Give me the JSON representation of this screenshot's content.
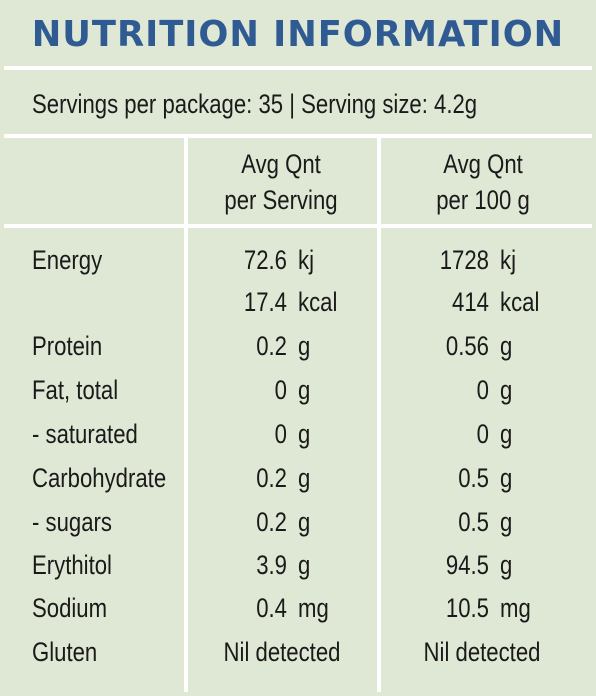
{
  "title": "NUTRITION INFORMATION",
  "serving_info": "Servings per package: 35 | Serving size: 4.2g",
  "headers": {
    "per_serving_line1": "Avg Qnt",
    "per_serving_line2": "per Serving",
    "per_100g_line1": "Avg Qnt",
    "per_100g_line2": "per 100 g"
  },
  "rows": [
    {
      "name": "Energy",
      "serv_val": "72.6",
      "serv_unit": "kj",
      "g100_val": "1728",
      "g100_unit": "kj"
    },
    {
      "name": "",
      "serv_val": "17.4",
      "serv_unit": "kcal",
      "g100_val": "414",
      "g100_unit": "kcal"
    },
    {
      "name": "Protein",
      "serv_val": "0.2",
      "serv_unit": "g",
      "g100_val": "0.56",
      "g100_unit": "g"
    },
    {
      "name": "Fat, total",
      "serv_val": "0",
      "serv_unit": "g",
      "g100_val": "0",
      "g100_unit": "g"
    },
    {
      "name": "- saturated",
      "serv_val": "0",
      "serv_unit": "g",
      "g100_val": "0",
      "g100_unit": "g"
    },
    {
      "name": "Carbohydrate",
      "serv_val": "0.2",
      "serv_unit": "g",
      "g100_val": "0.5",
      "g100_unit": "g"
    },
    {
      "name": "- sugars",
      "serv_val": "0.2",
      "serv_unit": "g",
      "g100_val": "0.5",
      "g100_unit": "g"
    },
    {
      "name": "Erythitol",
      "serv_val": "3.9",
      "serv_unit": "g",
      "g100_val": "94.5",
      "g100_unit": "g"
    },
    {
      "name": "Sodium",
      "serv_val": "0.4",
      "serv_unit": "mg",
      "g100_val": "10.5",
      "g100_unit": "mg"
    }
  ],
  "gluten": {
    "name": "Gluten",
    "serv_text": "Nil detected",
    "g100_text": "Nil detected"
  },
  "colors": {
    "background": "#dfe8d5",
    "title": "#2f5a92",
    "grid": "#ffffff",
    "text": "#1a1a1a"
  }
}
